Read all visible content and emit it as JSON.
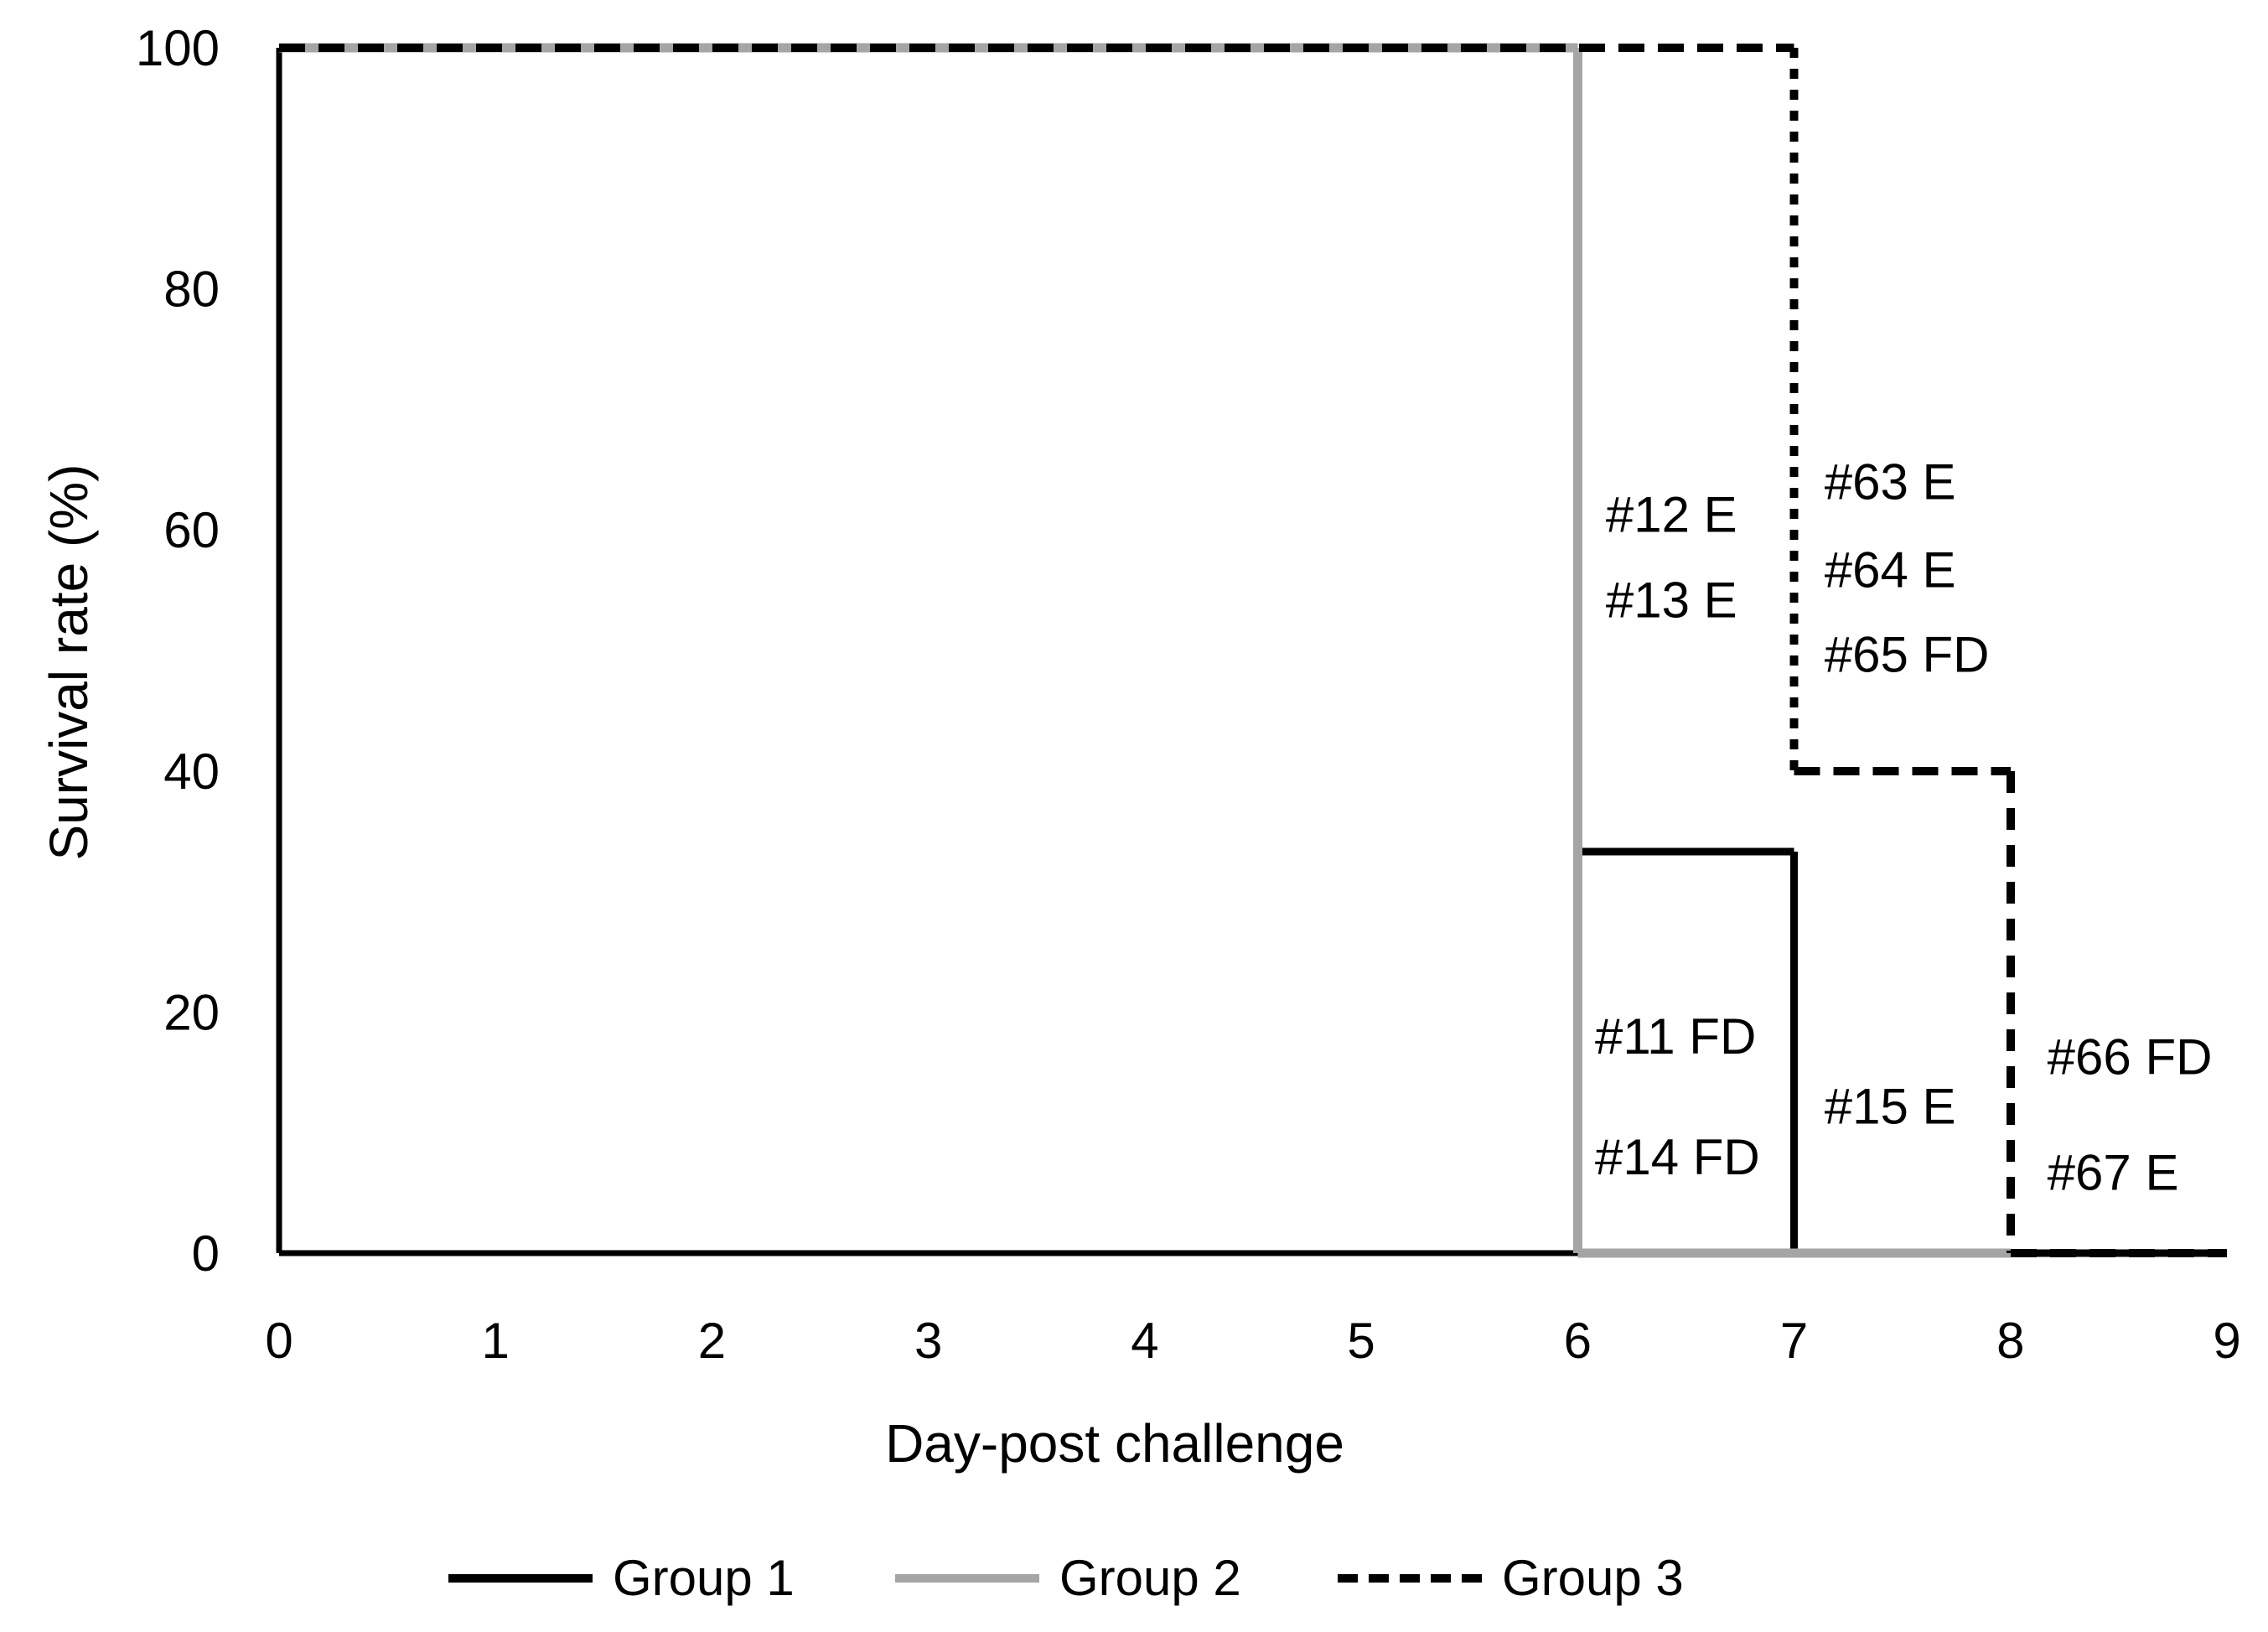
{
  "figure": {
    "background": "#ffffff",
    "text_color": "#000000",
    "gray_color": "#a5a5a5"
  },
  "chart_data": {
    "type": "line",
    "subtype": "step-survival",
    "title": "",
    "xlabel": "Day-post challenge",
    "ylabel": "Survival rate (%)",
    "xlim": [
      0,
      9
    ],
    "ylim": [
      0,
      100
    ],
    "x_ticks": [
      0,
      1,
      2,
      3,
      4,
      5,
      6,
      7,
      8,
      9
    ],
    "y_ticks": [
      0,
      20,
      40,
      60,
      80,
      100
    ],
    "grid": false,
    "legend_position": "bottom",
    "series": [
      {
        "name": "Group 1",
        "color": "#000000",
        "style": "solid",
        "width": 9,
        "legend_dash": "",
        "points": [
          [
            0,
            100
          ],
          [
            6,
            100
          ],
          [
            6,
            33.3
          ],
          [
            7,
            33.3
          ],
          [
            7,
            0
          ],
          [
            9,
            0
          ]
        ]
      },
      {
        "name": "Group 2",
        "color": "#a5a5a5",
        "style": "solid",
        "width": 11,
        "legend_dash": "",
        "points": [
          [
            0,
            100
          ],
          [
            6,
            100
          ],
          [
            6,
            0
          ],
          [
            8,
            0
          ]
        ]
      },
      {
        "name": "Group 3",
        "color": "#000000",
        "style": "dashed",
        "width": 10,
        "legend_dash": "24 13",
        "points": [
          [
            0,
            100
          ],
          [
            7,
            100
          ],
          [
            7,
            40
          ],
          [
            8,
            40
          ],
          [
            8,
            0
          ],
          [
            9,
            0
          ]
        ],
        "segment_dashes": [
          "31 16",
          "12 13",
          "31 16",
          "26 18",
          "31 16"
        ]
      }
    ],
    "annotations": [
      {
        "text": "#12 E",
        "day": 6.13,
        "pct": 61.3
      },
      {
        "text": "#13 E",
        "day": 6.13,
        "pct": 54.2
      },
      {
        "text": "#63 E",
        "day": 7.14,
        "pct": 64.0
      },
      {
        "text": "#64 E",
        "day": 7.14,
        "pct": 56.7
      },
      {
        "text": "#65 FD",
        "day": 7.14,
        "pct": 49.7
      },
      {
        "text": "#11 FD",
        "day": 6.08,
        "pct": 18.0
      },
      {
        "text": "#14 FD",
        "day": 6.08,
        "pct": 8.0
      },
      {
        "text": "#15 E",
        "day": 7.14,
        "pct": 12.2
      },
      {
        "text": "#66 FD",
        "day": 8.17,
        "pct": 16.3
      },
      {
        "text": "#67 E",
        "day": 8.17,
        "pct": 6.7
      }
    ]
  }
}
